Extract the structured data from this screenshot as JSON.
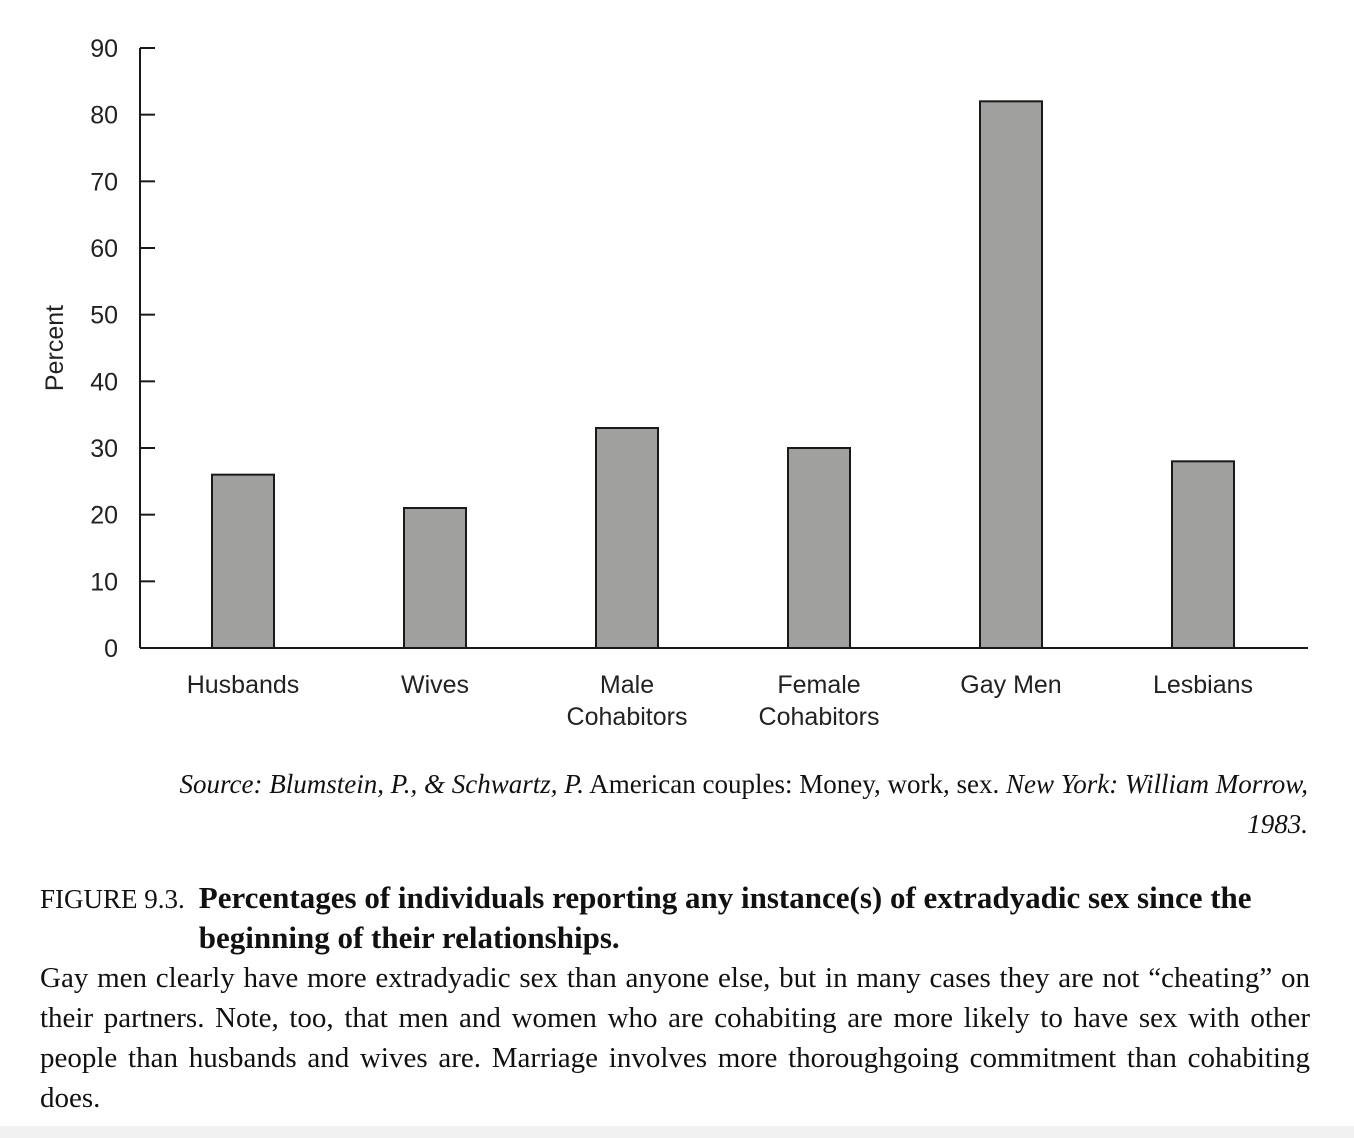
{
  "chart_data": {
    "type": "bar",
    "categories": [
      [
        "Husbands"
      ],
      [
        "Wives"
      ],
      [
        "Male",
        "Cohabitors"
      ],
      [
        "Female",
        "Cohabitors"
      ],
      [
        "Gay Men"
      ],
      [
        "Lesbians"
      ]
    ],
    "values": [
      26,
      21,
      33,
      30,
      82,
      28
    ],
    "ylabel": "Percent",
    "ylim": [
      0,
      90
    ],
    "yticks": [
      0,
      10,
      20,
      30,
      40,
      50,
      60,
      70,
      80,
      90
    ],
    "bar_color": "#a0a09f",
    "grid": false
  },
  "source": {
    "prefix": "Source: Blumstein, P., & Schwartz, P.",
    "title": "American couples: Money, work, sex.",
    "suffix": "New York: William Morrow, 1983."
  },
  "caption": {
    "label": "FIGURE 9.3.",
    "title": "Percentages of individuals reporting any instance(s) of extradyadic sex since the beginning of their relationships.",
    "body": "Gay men clearly have more extradyadic sex than anyone else, but in many cases they are not “cheating” on their partners. Note, too, that men and women who are cohabiting are more likely to have sex with other people than husbands and wives are. Marriage involves more thoroughgoing commitment than cohabiting does."
  }
}
